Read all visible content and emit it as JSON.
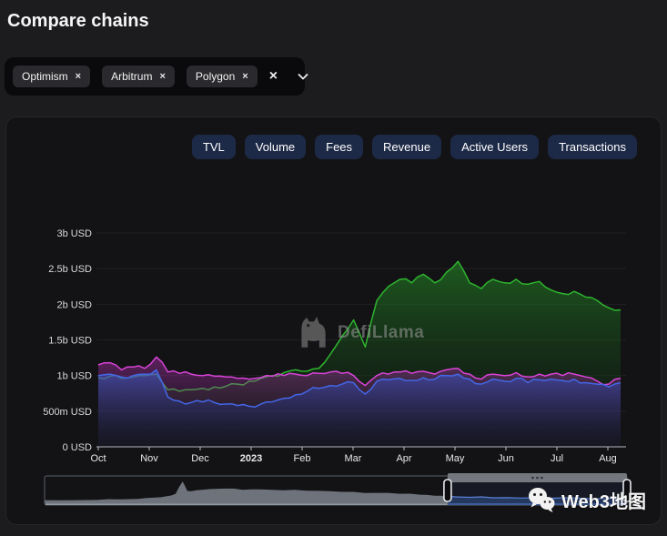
{
  "header": {
    "title": "Compare chains"
  },
  "chipbar": {
    "chips": [
      {
        "label": "Optimism",
        "remove_icon": "×"
      },
      {
        "label": "Arbitrum",
        "remove_icon": "×"
      },
      {
        "label": "Polygon",
        "remove_icon": "×"
      }
    ],
    "clear_all_icon": "×"
  },
  "tabs": {
    "items": [
      {
        "label": "TVL"
      },
      {
        "label": "Volume"
      },
      {
        "label": "Fees"
      },
      {
        "label": "Revenue"
      },
      {
        "label": "Active Users"
      },
      {
        "label": "Transactions"
      }
    ]
  },
  "watermarks": {
    "defillama": "DefiLlama",
    "web3": "Web3地图"
  },
  "colors": {
    "page_bg": "#1c1c1f",
    "panel_bg": "#131316",
    "tab_bg": "#1d2a47",
    "chip_bg": "#2a2a2e",
    "chipbar_bg": "#0a0a0d",
    "axis": "#b6bac2",
    "grid": "#202025"
  },
  "chart_data": {
    "type": "area",
    "title": "",
    "xlabel": "",
    "ylabel": "",
    "unit": "USD (billions)",
    "ylim": [
      0,
      3
    ],
    "grid": "horizontal",
    "legend": "none",
    "y_ticks": [
      "0 USD",
      "500m USD",
      "1b USD",
      "1.5b USD",
      "2b USD",
      "2.5b USD",
      "3b USD"
    ],
    "y_tick_values": [
      0,
      0.5,
      1,
      1.5,
      2,
      2.5,
      3
    ],
    "x_ticks": [
      "Oct",
      "Nov",
      "Dec",
      "2023",
      "Feb",
      "Mar",
      "Apr",
      "May",
      "Jun",
      "Jul",
      "Aug"
    ],
    "bold_x_tick": 3,
    "series": [
      {
        "name": "green-series",
        "color": "#2eb42e",
        "fill_top": "rgba(40,150,40,0.55)",
        "fill_bottom": "rgba(12,45,12,0.10)",
        "values": [
          0.97,
          0.99,
          0.96,
          0.98,
          1.0,
          1.02,
          0.8,
          0.78,
          0.8,
          0.82,
          0.84,
          0.85,
          0.88,
          0.92,
          0.96,
          1.0,
          1.04,
          1.08,
          1.06,
          1.1,
          1.3,
          1.55,
          1.78,
          1.4,
          2.05,
          2.25,
          2.35,
          2.3,
          2.42,
          2.3,
          2.45,
          2.6,
          2.3,
          2.22,
          2.35,
          2.3,
          2.35,
          2.28,
          2.32,
          2.2,
          2.15,
          2.18,
          2.1,
          2.05,
          1.95,
          1.92
        ]
      },
      {
        "name": "magenta-series",
        "color": "#d843d8",
        "fill_top": "rgba(195,55,195,0.42)",
        "fill_bottom": "rgba(70,20,70,0.08)",
        "values": [
          1.15,
          1.18,
          1.08,
          1.12,
          1.1,
          1.26,
          1.05,
          1.03,
          1.02,
          1.0,
          0.99,
          0.98,
          0.96,
          0.95,
          0.97,
          0.99,
          1.0,
          1.02,
          1.0,
          1.03,
          1.05,
          1.03,
          1.0,
          0.86,
          1.0,
          1.02,
          1.05,
          1.03,
          1.06,
          1.02,
          1.08,
          1.1,
          1.02,
          0.95,
          1.02,
          1.0,
          1.04,
          0.98,
          1.02,
          1.02,
          1.0,
          1.02,
          0.98,
          0.92,
          0.88,
          0.96
        ]
      },
      {
        "name": "blue-series",
        "color": "#4466e6",
        "fill_top": "rgba(60,90,215,0.55)",
        "fill_bottom": "rgba(18,28,80,0.12)",
        "values": [
          1.0,
          1.02,
          0.98,
          1.0,
          1.02,
          1.08,
          0.7,
          0.64,
          0.62,
          0.63,
          0.62,
          0.6,
          0.58,
          0.57,
          0.6,
          0.63,
          0.68,
          0.73,
          0.78,
          0.82,
          0.86,
          0.88,
          0.9,
          0.74,
          0.92,
          0.94,
          0.96,
          0.93,
          0.97,
          0.95,
          1.0,
          1.02,
          0.95,
          0.88,
          0.95,
          0.92,
          0.96,
          0.9,
          0.94,
          0.95,
          0.93,
          0.95,
          0.9,
          0.88,
          0.84,
          0.9
        ]
      }
    ],
    "brush": {
      "selection": [
        0.692,
        1.0
      ],
      "points": [
        [
          0,
          0.13
        ],
        [
          0.05,
          0.13
        ],
        [
          0.09,
          0.14
        ],
        [
          0.13,
          0.16
        ],
        [
          0.16,
          0.18
        ],
        [
          0.19,
          0.24
        ],
        [
          0.21,
          0.3
        ],
        [
          0.225,
          0.4
        ],
        [
          0.237,
          0.92
        ],
        [
          0.245,
          0.52
        ],
        [
          0.26,
          0.55
        ],
        [
          0.285,
          0.6
        ],
        [
          0.31,
          0.62
        ],
        [
          0.34,
          0.57
        ],
        [
          0.37,
          0.59
        ],
        [
          0.41,
          0.55
        ],
        [
          0.45,
          0.53
        ],
        [
          0.49,
          0.51
        ],
        [
          0.53,
          0.48
        ],
        [
          0.57,
          0.44
        ],
        [
          0.61,
          0.4
        ],
        [
          0.645,
          0.36
        ],
        [
          0.67,
          0.32
        ],
        [
          0.692,
          0.29
        ],
        [
          0.73,
          0.25
        ],
        [
          0.77,
          0.23
        ],
        [
          0.82,
          0.22
        ],
        [
          0.87,
          0.21
        ],
        [
          0.92,
          0.21
        ],
        [
          0.96,
          0.2
        ],
        [
          1,
          0.21
        ]
      ]
    }
  }
}
